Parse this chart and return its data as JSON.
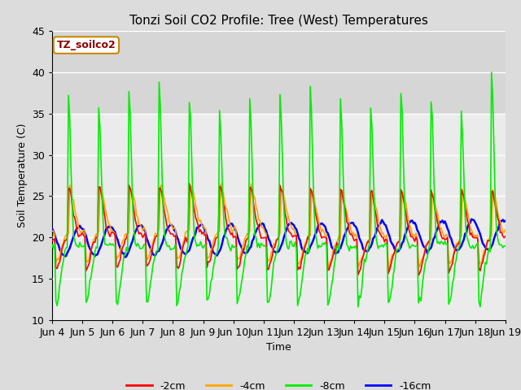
{
  "title": "Tonzi Soil CO2 Profile: Tree (West) Temperatures",
  "xlabel": "Time",
  "ylabel": "Soil Temperature (C)",
  "ylim": [
    10,
    45
  ],
  "xlim": [
    0,
    360
  ],
  "legend_label": "TZ_soilco2",
  "legend_text_color": "#8B0000",
  "legend_box_edge_color": "#CC8800",
  "legend_box_fill_color": "#FFFFFF",
  "series_labels": [
    "-2cm",
    "-4cm",
    "-8cm",
    "-16cm"
  ],
  "series_colors": [
    "#FF0000",
    "#FFA500",
    "#00EE00",
    "#0000FF"
  ],
  "series_linewidths": [
    1.2,
    1.2,
    1.2,
    1.8
  ],
  "background_color": "#DCDCDC",
  "plot_bg_color": "#EBEBEB",
  "shaded_band": [
    35,
    45
  ],
  "shaded_band_color": "#C8C8C8",
  "grid_color": "#FFFFFF",
  "tick_labels": [
    "Jun 4",
    "Jun 5",
    "Jun 6",
    "Jun 7",
    "Jun 8",
    "Jun 9",
    "Jun 10",
    "Jun 11",
    "Jun 12",
    "Jun 13",
    "Jun 14",
    "Jun 15",
    "Jun 16",
    "Jun 17",
    "Jun 18",
    "Jun 19"
  ],
  "tick_positions": [
    0,
    24,
    48,
    72,
    96,
    120,
    144,
    168,
    192,
    216,
    240,
    264,
    288,
    312,
    336,
    360
  ],
  "yticks": [
    10,
    15,
    20,
    25,
    30,
    35,
    40,
    45
  ]
}
